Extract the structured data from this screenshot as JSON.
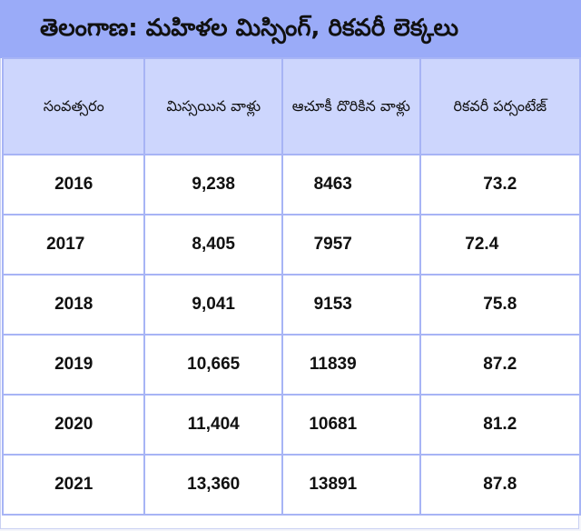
{
  "title": "తెలంగాణ: మహిళల మిస్సింగ్, రికవరీ లెక్కలు",
  "colors": {
    "title_bg": "#9aabf8",
    "header_bg": "#cdd6fd",
    "grid": "#a7b4f5",
    "cell_bg": "#ffffff"
  },
  "table": {
    "headers": [
      "సంవత్సరం",
      "మిస్సయిన వాళ్లు",
      "ఆచూకీ దొరికిన వాళ్లు",
      "రికవరీ పర్సంటేజ్"
    ],
    "rows": [
      {
        "year": "2016",
        "missing": "9,238",
        "found": "8463",
        "recovery_pct": "73.2"
      },
      {
        "year": "2017",
        "missing": "8,405",
        "found": "7957",
        "recovery_pct": "72.4"
      },
      {
        "year": "2018",
        "missing": "9,041",
        "found": "9153",
        "recovery_pct": "75.8"
      },
      {
        "year": "2019",
        "missing": "10,665",
        "found": "11839",
        "recovery_pct": "87.2"
      },
      {
        "year": "2020",
        "missing": "11,404",
        "found": "10681",
        "recovery_pct": "81.2"
      },
      {
        "year": "2021",
        "missing": "13,360",
        "found": "13891",
        "recovery_pct": "87.8"
      }
    ]
  }
}
